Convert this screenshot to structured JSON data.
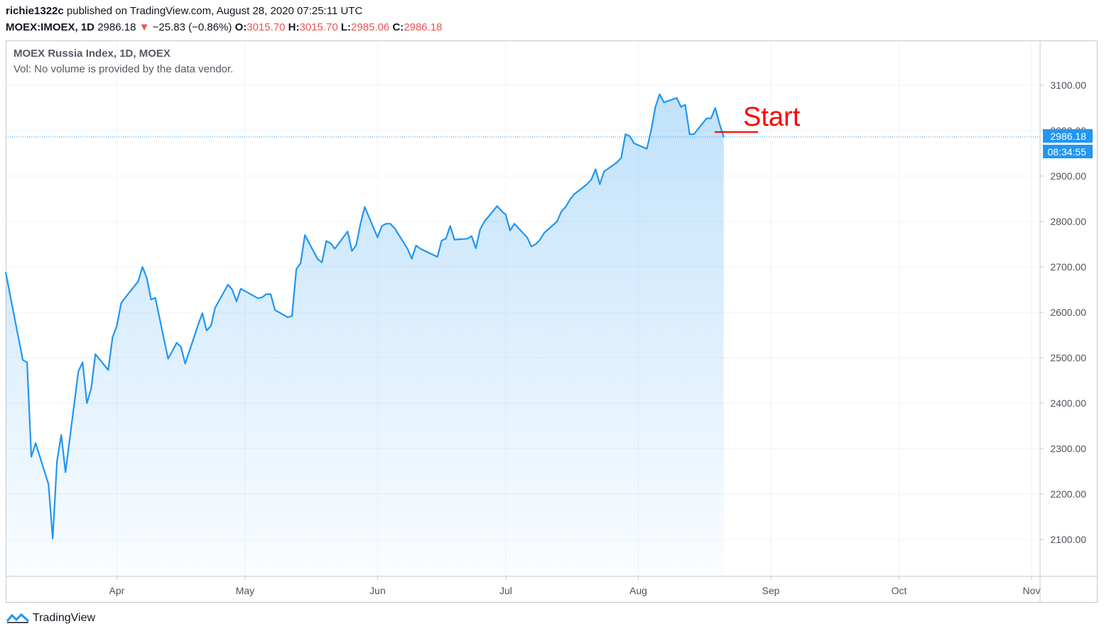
{
  "header": {
    "author": "richie1322c",
    "published": " published on TradingView.com, August 28, 2020 07:25:11 UTC",
    "symbol": "MOEX:IMOEX, 1D",
    "last": "2986.18",
    "change": "−25.83 (−0.86%)",
    "open_label": "O:",
    "open": "3015.70",
    "high_label": "H:",
    "high": "3015.70",
    "low_label": "L:",
    "low": "2985.06",
    "close_label": "C:",
    "close": "2986.18"
  },
  "legend": {
    "title": "MOEX Russia Index, 1D, MOEX",
    "volume_note": "Vol: No volume is provided by the data vendor."
  },
  "price_tag": {
    "value": "2986.18",
    "countdown": "08:34:55"
  },
  "annotation": {
    "text": "Start",
    "color": "#ff0000"
  },
  "footer": {
    "brand": "TradingView"
  },
  "colors": {
    "line": "#2196f3",
    "down": "#ef5350",
    "grid": "#f0f3fa",
    "axis_text": "#50535e"
  },
  "chart_data": {
    "type": "area",
    "y_ticks": [
      "2100.00",
      "2200.00",
      "2300.00",
      "2400.00",
      "2500.00",
      "2600.00",
      "2700.00",
      "2800.00",
      "2900.00",
      "3000.00",
      "3100.00"
    ],
    "x_labels": [
      "Apr",
      "May",
      "Jun",
      "Jul",
      "Aug",
      "Sep",
      "Oct",
      "Nov"
    ],
    "x_label_dates": [
      "2020-04-01",
      "2020-05-01",
      "2020-06-01",
      "2020-07-01",
      "2020-08-01",
      "2020-09-01",
      "2020-10-01",
      "2020-11-01"
    ],
    "ylim": [
      2020,
      3115
    ],
    "xlim": [
      "2020-03-06",
      "2020-11-01"
    ],
    "grid": true,
    "series": [
      {
        "values": [
          [
            "2020-03-06",
            2688
          ],
          [
            "2020-03-10",
            2495
          ],
          [
            "2020-03-11",
            2490
          ],
          [
            "2020-03-12",
            2282
          ],
          [
            "2020-03-13",
            2312
          ],
          [
            "2020-03-16",
            2222
          ],
          [
            "2020-03-17",
            2102
          ],
          [
            "2020-03-18",
            2272
          ],
          [
            "2020-03-19",
            2330
          ],
          [
            "2020-03-20",
            2248
          ],
          [
            "2020-03-23",
            2470
          ],
          [
            "2020-03-24",
            2490
          ],
          [
            "2020-03-25",
            2400
          ],
          [
            "2020-03-26",
            2432
          ],
          [
            "2020-03-27",
            2508
          ],
          [
            "2020-03-30",
            2473
          ],
          [
            "2020-03-31",
            2545
          ],
          [
            "2020-04-01",
            2570
          ],
          [
            "2020-04-02",
            2620
          ],
          [
            "2020-04-03",
            2633
          ],
          [
            "2020-04-06",
            2668
          ],
          [
            "2020-04-07",
            2700
          ],
          [
            "2020-04-08",
            2676
          ],
          [
            "2020-04-09",
            2628
          ],
          [
            "2020-04-10",
            2632
          ],
          [
            "2020-04-13",
            2498
          ],
          [
            "2020-04-14",
            2515
          ],
          [
            "2020-04-15",
            2533
          ],
          [
            "2020-04-16",
            2524
          ],
          [
            "2020-04-17",
            2487
          ],
          [
            "2020-04-20",
            2572
          ],
          [
            "2020-04-21",
            2598
          ],
          [
            "2020-04-22",
            2560
          ],
          [
            "2020-04-23",
            2570
          ],
          [
            "2020-04-24",
            2610
          ],
          [
            "2020-04-27",
            2661
          ],
          [
            "2020-04-28",
            2650
          ],
          [
            "2020-04-29",
            2624
          ],
          [
            "2020-04-30",
            2652
          ],
          [
            "2020-05-04",
            2631
          ],
          [
            "2020-05-05",
            2633
          ],
          [
            "2020-05-06",
            2640
          ],
          [
            "2020-05-07",
            2640
          ],
          [
            "2020-05-08",
            2605
          ],
          [
            "2020-05-11",
            2589
          ],
          [
            "2020-05-12",
            2592
          ],
          [
            "2020-05-13",
            2695
          ],
          [
            "2020-05-14",
            2708
          ],
          [
            "2020-05-15",
            2770
          ],
          [
            "2020-05-18",
            2717
          ],
          [
            "2020-05-19",
            2710
          ],
          [
            "2020-05-20",
            2757
          ],
          [
            "2020-05-21",
            2752
          ],
          [
            "2020-05-22",
            2740
          ],
          [
            "2020-05-25",
            2778
          ],
          [
            "2020-05-26",
            2735
          ],
          [
            "2020-05-27",
            2748
          ],
          [
            "2020-05-28",
            2795
          ],
          [
            "2020-05-29",
            2832
          ],
          [
            "2020-06-01",
            2765
          ],
          [
            "2020-06-02",
            2790
          ],
          [
            "2020-06-03",
            2795
          ],
          [
            "2020-06-04",
            2795
          ],
          [
            "2020-06-05",
            2785
          ],
          [
            "2020-06-08",
            2740
          ],
          [
            "2020-06-09",
            2718
          ],
          [
            "2020-06-10",
            2747
          ],
          [
            "2020-06-11",
            2740
          ],
          [
            "2020-06-15",
            2722
          ],
          [
            "2020-06-16",
            2758
          ],
          [
            "2020-06-17",
            2762
          ],
          [
            "2020-06-18",
            2790
          ],
          [
            "2020-06-19",
            2760
          ],
          [
            "2020-06-22",
            2762
          ],
          [
            "2020-06-23",
            2768
          ],
          [
            "2020-06-24",
            2741
          ],
          [
            "2020-06-25",
            2783
          ],
          [
            "2020-06-26",
            2800
          ],
          [
            "2020-06-29",
            2834
          ],
          [
            "2020-06-30",
            2823
          ],
          [
            "2020-07-01",
            2815
          ],
          [
            "2020-07-02",
            2780
          ],
          [
            "2020-07-03",
            2795
          ],
          [
            "2020-07-06",
            2765
          ],
          [
            "2020-07-07",
            2745
          ],
          [
            "2020-07-08",
            2750
          ],
          [
            "2020-07-09",
            2760
          ],
          [
            "2020-07-10",
            2775
          ],
          [
            "2020-07-13",
            2800
          ],
          [
            "2020-07-14",
            2822
          ],
          [
            "2020-07-15",
            2832
          ],
          [
            "2020-07-16",
            2848
          ],
          [
            "2020-07-17",
            2860
          ],
          [
            "2020-07-20",
            2882
          ],
          [
            "2020-07-21",
            2892
          ],
          [
            "2020-07-22",
            2915
          ],
          [
            "2020-07-23",
            2882
          ],
          [
            "2020-07-24",
            2910
          ],
          [
            "2020-07-27",
            2930
          ],
          [
            "2020-07-28",
            2940
          ],
          [
            "2020-07-29",
            2992
          ],
          [
            "2020-07-30",
            2988
          ],
          [
            "2020-07-31",
            2972
          ],
          [
            "2020-08-03",
            2960
          ],
          [
            "2020-08-04",
            3000
          ],
          [
            "2020-08-05",
            3052
          ],
          [
            "2020-08-06",
            3080
          ],
          [
            "2020-08-07",
            3062
          ],
          [
            "2020-08-10",
            3072
          ],
          [
            "2020-08-11",
            3052
          ],
          [
            "2020-08-12",
            3057
          ],
          [
            "2020-08-13",
            2992
          ],
          [
            "2020-08-14",
            2992
          ],
          [
            "2020-08-17",
            3027
          ],
          [
            "2020-08-18",
            3027
          ],
          [
            "2020-08-19",
            3050
          ],
          [
            "2020-08-20",
            3015
          ],
          [
            "2020-08-21",
            2986
          ]
        ]
      }
    ]
  }
}
